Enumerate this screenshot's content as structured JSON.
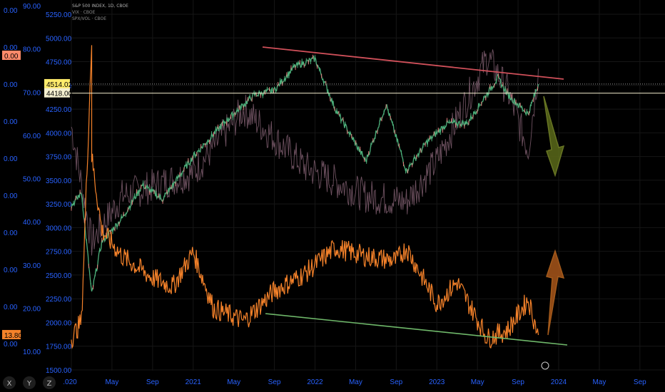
{
  "legend": [
    "S&P 500 INDEX, 1D, CBOE",
    "VIX · CBOE",
    "SPX/VOL · CBOE"
  ],
  "price_labels": [
    {
      "text": "4514.02",
      "color": "#ffeb6b",
      "value": 4514.02
    },
    {
      "text": "4418.00",
      "color": "#f5f0d0",
      "value": 4418.0
    },
    {
      "text": "13.80",
      "color": "#f5822a",
      "value": 13.8
    },
    {
      "text": "0.00",
      "color": "#ff8a6a",
      "value": 0
    }
  ],
  "bottom_buttons": [
    "X",
    "Y",
    "Z"
  ],
  "colors": {
    "spx_up": "#4caf7a",
    "spx_down": "#e07a7a",
    "vix": "#f5822a",
    "ratio": "#7a5a6a",
    "resistance": "#d0505a",
    "support": "#6fb86a",
    "arrow_down": "#5b6a1a",
    "arrow_up": "#a8561a",
    "axis_spx": "#a0a0a0",
    "axis_vix": "#2962ff"
  },
  "chart_data": {
    "type": "line",
    "title": "S&P 500 INDEX, 1D, CBOE",
    "x_tick_labels": [
      "2020",
      "May",
      "Sep",
      "2021",
      "May",
      "Sep",
      "2022",
      "May",
      "Sep",
      "2023",
      "May",
      "Sep",
      "2024",
      "May",
      "Sep"
    ],
    "y_left_outer": {
      "ticks": [
        "0.00",
        "0.00",
        "0.00",
        "0.00",
        "0.00",
        "0.00",
        "0.00",
        "0.00",
        "0.00",
        "0.00"
      ]
    },
    "y_left_vix": {
      "range": [
        10,
        90
      ],
      "ticks": [
        "90.00",
        "80.00",
        "70.00",
        "60.00",
        "50.00",
        "40.00",
        "30.00",
        "20.00",
        "10.00"
      ]
    },
    "y_left_spx": {
      "range": [
        1500,
        5250
      ],
      "ticks": [
        "5250.00",
        "5000.00",
        "4750.00",
        "4500.00",
        "4250.00",
        "4000.00",
        "3750.00",
        "3500.00",
        "3250.00",
        "3000.00",
        "2750.00",
        "2500.00",
        "2250.00",
        "2000.00",
        "1750.00",
        "1500.00"
      ]
    },
    "series": [
      {
        "name": "S&P 500 INDEX",
        "x": [
          "2020-01",
          "2020-02",
          "2020-03",
          "2020-04",
          "2020-06",
          "2020-08",
          "2020-10",
          "2021-01",
          "2021-04",
          "2021-07",
          "2021-09",
          "2021-11",
          "2022-01",
          "2022-03",
          "2022-06",
          "2022-08",
          "2022-10",
          "2022-12",
          "2023-02",
          "2023-04",
          "2023-07",
          "2023-08",
          "2023-10",
          "2023-11"
        ],
        "values": [
          3230,
          3370,
          2300,
          2850,
          3100,
          3450,
          3300,
          3750,
          4100,
          4400,
          4450,
          4700,
          4780,
          4250,
          3700,
          4300,
          3600,
          3900,
          4100,
          4100,
          4580,
          4400,
          4200,
          4514
        ]
      },
      {
        "name": "VIX",
        "x": [
          "2020-01",
          "2020-02",
          "2020-03",
          "2020-03",
          "2020-04",
          "2020-06",
          "2020-09",
          "2020-11",
          "2021-01",
          "2021-03",
          "2021-06",
          "2021-09",
          "2021-12",
          "2022-03",
          "2022-06",
          "2022-09",
          "2022-10",
          "2023-01",
          "2023-03",
          "2023-06",
          "2023-08",
          "2023-10",
          "2023-11"
        ],
        "values": [
          13,
          17,
          82,
          55,
          38,
          32,
          27,
          25,
          33,
          20,
          17,
          24,
          28,
          34,
          32,
          31,
          34,
          21,
          26,
          13,
          15,
          22,
          13.8
        ]
      },
      {
        "name": "SPX/VOL",
        "x": [
          "2020-01",
          "2020-03",
          "2020-06",
          "2021-01",
          "2021-06",
          "2021-12",
          "2022-06",
          "2022-10",
          "2023-01",
          "2023-06",
          "2023-08",
          "2023-10",
          "2023-11"
        ],
        "values": [
          230,
          30,
          110,
          150,
          260,
          160,
          110,
          100,
          170,
          350,
          290,
          190,
          330
        ]
      }
    ],
    "annotations": [
      "resistance trendline",
      "support trendline",
      "down arrow",
      "up arrow"
    ],
    "grid": true
  }
}
